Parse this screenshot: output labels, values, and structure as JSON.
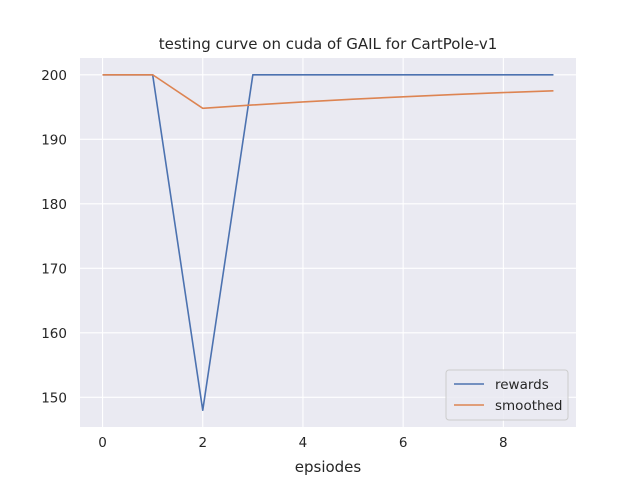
{
  "chart_data": {
    "type": "line",
    "title": "testing curve on cuda of GAIL for CartPole-v1",
    "xlabel": "epsiodes",
    "ylabel": "",
    "x": [
      0,
      1,
      2,
      3,
      4,
      5,
      6,
      7,
      8,
      9
    ],
    "xlim": [
      -0.45,
      9.45
    ],
    "ylim": [
      145.4,
      202.6
    ],
    "xticks": [
      0,
      2,
      4,
      6,
      8
    ],
    "yticks": [
      150,
      160,
      170,
      180,
      190,
      200
    ],
    "grid": true,
    "legend_position": "bottom-right",
    "series": [
      {
        "name": "rewards",
        "color": "#4c72b0",
        "values": [
          200,
          200,
          148,
          200,
          200,
          200,
          200,
          200,
          200,
          200
        ]
      },
      {
        "name": "smoothed",
        "color": "#dd8452",
        "values": [
          200,
          200,
          194.8,
          195.32,
          195.79,
          196.21,
          196.59,
          196.93,
          197.24,
          197.51
        ]
      }
    ]
  }
}
